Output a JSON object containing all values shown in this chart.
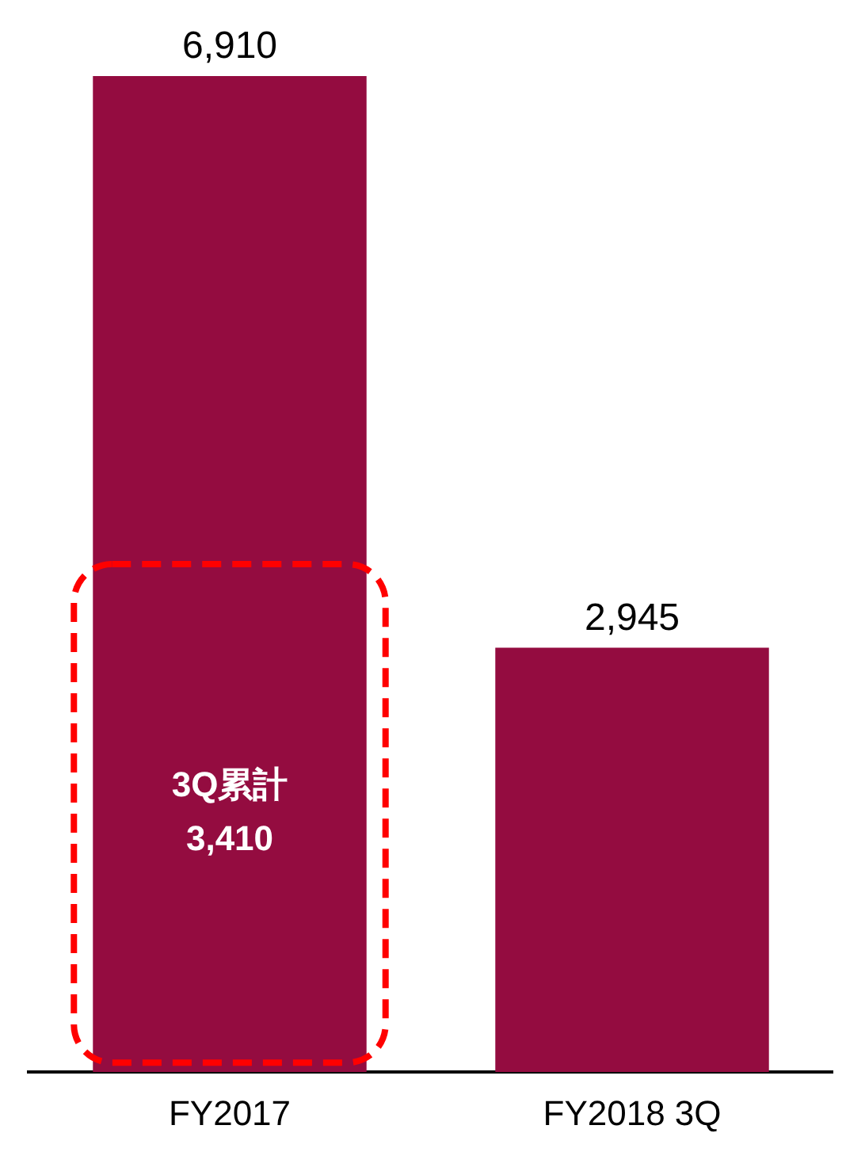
{
  "chart_data": {
    "type": "bar",
    "categories": [
      "FY2017",
      "FY2018 3Q"
    ],
    "values": [
      6910,
      2945
    ],
    "color": "#940c40",
    "value_labels": [
      "6,910",
      "2,945"
    ],
    "grid": false,
    "legend": false,
    "annotations": [
      "3Q累計\n3,410"
    ]
  }
}
